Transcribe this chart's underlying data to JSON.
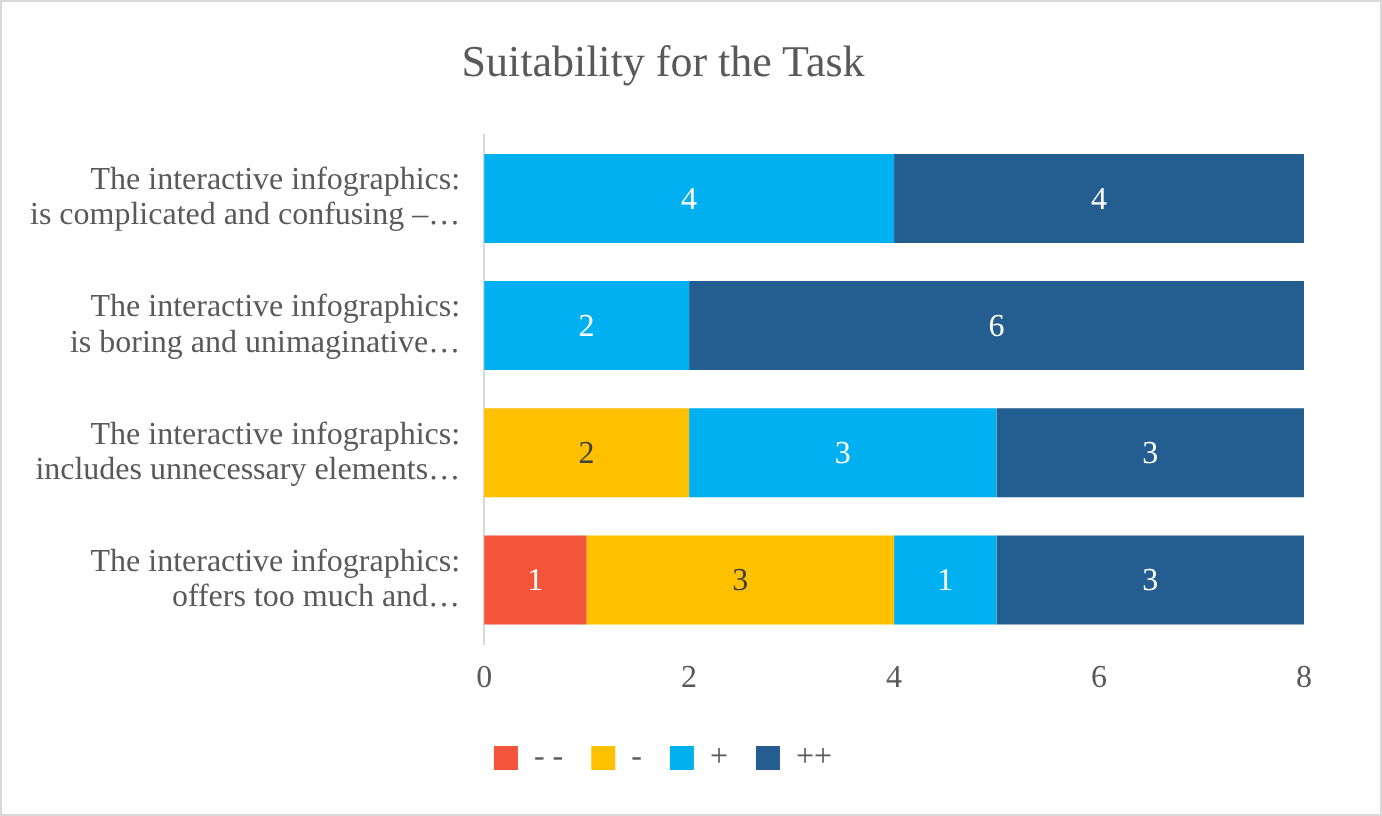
{
  "chart_data": {
    "type": "bar",
    "title": "Suitability for the Task",
    "orientation": "horizontal",
    "stacked": true,
    "categories": [
      "The interactive infographics: is complicated and confusing –…",
      "The interactive infographics: is boring and unimaginative…",
      "The interactive infographics: includes unnecessary elements…",
      "The interactive infographics: offers too much and…"
    ],
    "series": [
      {
        "name": "- -",
        "color": "#f4553a",
        "values": [
          null,
          null,
          null,
          1
        ]
      },
      {
        "name": "-",
        "color": "#ffc000",
        "values": [
          null,
          null,
          2,
          3
        ]
      },
      {
        "name": "+",
        "color": "#00b0f0",
        "values": [
          4,
          2,
          3,
          1
        ]
      },
      {
        "name": "++",
        "color": "#245e91",
        "values": [
          4,
          6,
          3,
          3
        ]
      }
    ],
    "xlim": [
      0,
      8
    ],
    "xticks": [
      0,
      2,
      4,
      6,
      8
    ],
    "grid": false,
    "legend": "bottom",
    "data_labels": true
  }
}
